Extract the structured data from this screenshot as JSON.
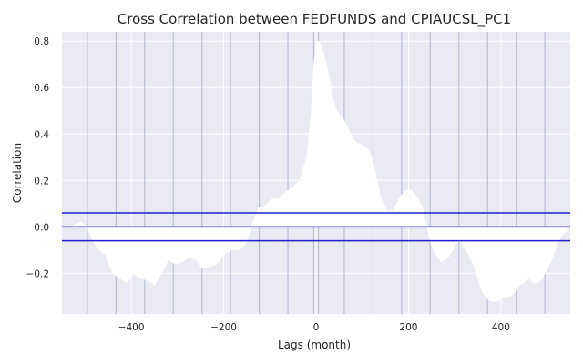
{
  "chart_data": {
    "type": "line",
    "title": "Cross Correlation between FEDFUNDS and CPIAUCSL_PC1",
    "xlabel": "Lags (month)",
    "ylabel": "Correlation",
    "xlim": [
      -550,
      550
    ],
    "ylim": [
      -0.375,
      0.84
    ],
    "xticks": [
      -400,
      -200,
      0,
      200,
      400
    ],
    "xtick_labels": [
      "−400",
      "−200",
      "0",
      "200",
      "400"
    ],
    "yticks": [
      -0.2,
      0.0,
      0.2,
      0.4,
      0.6,
      0.8
    ],
    "ytick_labels": [
      "−0.2",
      "0.0",
      "0.2",
      "0.4",
      "0.6",
      "0.8"
    ],
    "grid": true,
    "background_color": "#eaeaf2",
    "series_color": "#ffffff",
    "series": [
      {
        "x": [
          -550,
          -530,
          -510,
          -495,
          -485,
          -470,
          -455,
          -440,
          -425,
          -410,
          -395,
          -380,
          -365,
          -350,
          -335,
          -320,
          -305,
          -290,
          -275,
          -260,
          -245,
          -230,
          -215,
          -200,
          -185,
          -170,
          -155,
          -140,
          -125,
          -110,
          -95,
          -80,
          -65,
          -50,
          -35,
          -20,
          -10,
          -5,
          0,
          5,
          10,
          20,
          30,
          40,
          50,
          60,
          70,
          80,
          90,
          100,
          110,
          120,
          130,
          140,
          150,
          160,
          170,
          180,
          190,
          200,
          210,
          220,
          230,
          240,
          250,
          260,
          270,
          280,
          290,
          300,
          310,
          320,
          330,
          340,
          350,
          360,
          370,
          380,
          390,
          400,
          410,
          420,
          430,
          440,
          450,
          460,
          470,
          480,
          490,
          500,
          510,
          520,
          530,
          540,
          550
        ],
        "y": [
          0.0,
          0.0,
          0.02,
          0.0,
          -0.05,
          -0.1,
          -0.12,
          -0.2,
          -0.22,
          -0.24,
          -0.2,
          -0.22,
          -0.23,
          -0.25,
          -0.2,
          -0.14,
          -0.16,
          -0.15,
          -0.13,
          -0.14,
          -0.18,
          -0.17,
          -0.16,
          -0.12,
          -0.1,
          -0.1,
          -0.08,
          0.0,
          0.08,
          0.09,
          0.12,
          0.12,
          0.15,
          0.17,
          0.2,
          0.3,
          0.5,
          0.7,
          0.78,
          0.8,
          0.78,
          0.72,
          0.62,
          0.52,
          0.48,
          0.46,
          0.42,
          0.38,
          0.36,
          0.35,
          0.34,
          0.3,
          0.22,
          0.12,
          0.08,
          0.06,
          0.08,
          0.12,
          0.15,
          0.16,
          0.15,
          0.12,
          0.08,
          0.0,
          -0.08,
          -0.12,
          -0.15,
          -0.14,
          -0.12,
          -0.08,
          -0.06,
          -0.08,
          -0.12,
          -0.16,
          -0.22,
          -0.28,
          -0.31,
          -0.32,
          -0.32,
          -0.31,
          -0.3,
          -0.3,
          -0.28,
          -0.25,
          -0.24,
          -0.22,
          -0.24,
          -0.24,
          -0.22,
          -0.18,
          -0.14,
          -0.08,
          -0.04,
          -0.02,
          0.0
        ]
      }
    ],
    "hlines": [
      {
        "y": 0.06,
        "color": "#1f1fcf"
      },
      {
        "y": 0.0,
        "color": "#1f1fcf"
      },
      {
        "y": -0.06,
        "color": "#1f1fcf"
      }
    ],
    "vlines": {
      "color": "#b0b6d6",
      "x": [
        -495,
        -433,
        -371,
        -309,
        -247,
        -185,
        -123,
        -61,
        -5,
        5,
        61,
        123,
        185,
        247,
        309,
        371,
        433,
        495
      ]
    }
  }
}
